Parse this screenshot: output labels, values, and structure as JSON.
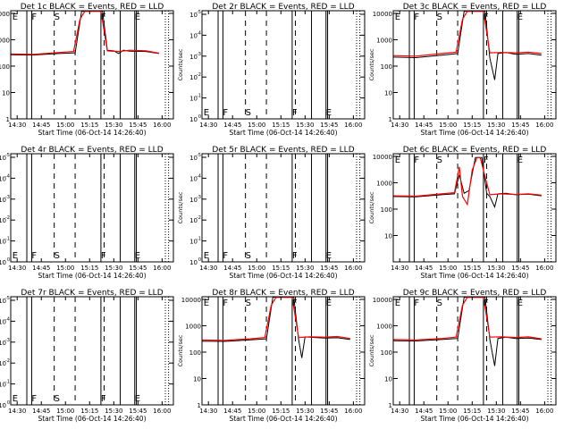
{
  "chart_data": [
    {
      "title": "Det 1c BLACK = Events, RED = LLD",
      "type": "line",
      "scale": "log",
      "ytick_labels": [
        "1",
        "10",
        "100",
        "1000",
        "10000"
      ],
      "ylabel": "Counts/sec",
      "xlabel": "Start Time (06-Oct-14 14:26:40)",
      "xtick_labels": [
        "14:30",
        "14:45",
        "15:00",
        "15:15",
        "15:30",
        "15:45",
        "16:00"
      ],
      "markers": [
        "E",
        "F",
        "S",
        "F",
        "E"
      ],
      "has_data": true,
      "series": [
        {
          "color": "#000000",
          "x": [
            "14:26",
            "14:40",
            "14:56",
            "15:06",
            "15:10",
            "15:23",
            "15:26",
            "15:30",
            "15:33",
            "15:36",
            "15:40",
            "15:50",
            "15:58"
          ],
          "y": [
            270,
            265,
            300,
            320,
            12000,
            12000,
            400,
            380,
            300,
            400,
            370,
            360,
            300
          ]
        },
        {
          "color": "#ff0000",
          "x": [
            "14:26",
            "14:40",
            "14:56",
            "15:05",
            "15:09",
            "15:12",
            "15:22",
            "15:26",
            "15:33",
            "15:40",
            "15:50",
            "15:58"
          ],
          "y": [
            290,
            280,
            330,
            360,
            6000,
            12000,
            12000,
            380,
            360,
            400,
            380,
            310
          ]
        }
      ]
    },
    {
      "title": "Det 2r BLACK = Events, RED = LLD",
      "type": "line",
      "scale": "exp",
      "ytick_labels": [
        "10",
        "10",
        "10",
        "10",
        "10",
        "10"
      ],
      "ytick_exps": [
        "0",
        "-1",
        "-2",
        "-3",
        "-4",
        "-5"
      ],
      "ylabel": "Counts/sec",
      "xlabel": "Start Time (06-Oct-14 14:26:40)",
      "xtick_labels": [
        "14:30",
        "14:45",
        "15:00",
        "15:15",
        "15:30",
        "15:45",
        "16:00"
      ],
      "markers": [
        "E",
        "F",
        "S",
        "F",
        "E"
      ],
      "has_data": false,
      "series": []
    },
    {
      "title": "Det 3c BLACK = Events, RED = LLD",
      "type": "line",
      "scale": "log",
      "ytick_labels": [
        "1",
        "10",
        "100",
        "1000",
        "10000"
      ],
      "ylabel": "Counts/sec",
      "xlabel": "Start Time (06-Oct-14 14:26:40)",
      "xtick_labels": [
        "14:30",
        "14:45",
        "15:00",
        "15:15",
        "15:30",
        "15:45",
        "16:00"
      ],
      "markers": [
        "E",
        "F",
        "S",
        "F",
        "E"
      ],
      "has_data": true,
      "series": [
        {
          "color": "#000000",
          "x": [
            "14:26",
            "14:40",
            "14:56",
            "15:06",
            "15:10",
            "15:23",
            "15:26",
            "15:29",
            "15:31",
            "15:36",
            "15:42",
            "15:50",
            "15:58"
          ],
          "y": [
            220,
            210,
            260,
            300,
            12000,
            12000,
            200,
            30,
            300,
            330,
            280,
            300,
            260
          ]
        },
        {
          "color": "#ff0000",
          "x": [
            "14:26",
            "14:40",
            "14:56",
            "15:05",
            "15:09",
            "15:12",
            "15:22",
            "15:26",
            "15:33",
            "15:42",
            "15:50",
            "15:58"
          ],
          "y": [
            250,
            240,
            300,
            340,
            6000,
            12000,
            12000,
            320,
            330,
            320,
            340,
            300
          ]
        }
      ]
    },
    {
      "title": "Det 4r BLACK = Events, RED = LLD",
      "type": "line",
      "scale": "exp",
      "ytick_labels": [
        "10",
        "10",
        "10",
        "10",
        "10",
        "10"
      ],
      "ytick_exps": [
        "0",
        "-1",
        "-2",
        "-3",
        "-4",
        "-5"
      ],
      "ylabel": "Counts/sec",
      "xlabel": "Start Time (06-Oct-14 14:26:40)",
      "xtick_labels": [
        "14:30",
        "14:45",
        "15:00",
        "15:15",
        "15:30",
        "15:45",
        "16:00"
      ],
      "markers": [
        "E",
        "F",
        "S",
        "F",
        "E"
      ],
      "has_data": false,
      "series": []
    },
    {
      "title": "Det 5r BLACK = Events, RED = LLD",
      "type": "line",
      "scale": "exp",
      "ytick_labels": [
        "10",
        "10",
        "10",
        "10",
        "10",
        "10"
      ],
      "ytick_exps": [
        "0",
        "-1",
        "-2",
        "-3",
        "-4",
        "-5"
      ],
      "ylabel": "Counts/sec",
      "xlabel": "Start Time (06-Oct-14 14:26:40)",
      "xtick_labels": [
        "14:30",
        "14:45",
        "15:00",
        "15:15",
        "15:30",
        "15:45",
        "16:00"
      ],
      "markers": [
        "E",
        "F",
        "S",
        "F",
        "E"
      ],
      "has_data": false,
      "series": []
    },
    {
      "title": "Det 6c BLACK = Events, RED = LLD",
      "type": "line",
      "scale": "log",
      "ytick_labels": [
        "10",
        "100",
        "1000",
        "10000"
      ],
      "ylabel": "Counts/sec",
      "xlabel": "Start Time (06-Oct-14 14:26:40)",
      "xtick_labels": [
        "14:30",
        "14:45",
        "15:00",
        "15:15",
        "15:30",
        "15:45",
        "16:00"
      ],
      "markers": [
        "E",
        "F",
        "S",
        "F",
        "E"
      ],
      "has_data": true,
      "series": [
        {
          "color": "#000000",
          "x": [
            "14:26",
            "14:40",
            "14:56",
            "15:04",
            "15:07",
            "15:10",
            "15:13",
            "15:17",
            "15:21",
            "15:24",
            "15:26",
            "15:29",
            "15:31",
            "15:36",
            "15:42",
            "15:50",
            "15:58"
          ],
          "y": [
            300,
            290,
            350,
            380,
            2000,
            400,
            500,
            9000,
            9000,
            400,
            300,
            120,
            380,
            400,
            350,
            370,
            320
          ]
        },
        {
          "color": "#ff0000",
          "x": [
            "14:26",
            "14:40",
            "14:56",
            "15:04",
            "15:07",
            "15:09",
            "15:12",
            "15:15",
            "15:18",
            "15:20",
            "15:24",
            "15:26",
            "15:33",
            "15:42",
            "15:50",
            "15:58"
          ],
          "y": [
            320,
            310,
            380,
            420,
            4000,
            300,
            150,
            3000,
            9000,
            9000,
            1000,
            350,
            380,
            360,
            380,
            340
          ]
        }
      ]
    },
    {
      "title": "Det 7r BLACK = Events, RED = LLD",
      "type": "line",
      "scale": "exp",
      "ytick_labels": [
        "10",
        "10",
        "10",
        "10",
        "10",
        "10"
      ],
      "ytick_exps": [
        "0",
        "-1",
        "-2",
        "-3",
        "-4",
        "-5"
      ],
      "ylabel": "Counts/sec",
      "xlabel": "Start Time (06-Oct-14 14:26:40)",
      "xtick_labels": [
        "14:30",
        "14:45",
        "15:00",
        "15:15",
        "15:30",
        "15:45",
        "16:00"
      ],
      "markers": [
        "E",
        "F",
        "S",
        "F",
        "E"
      ],
      "has_data": false,
      "series": []
    },
    {
      "title": "Det 8r BLACK = Events, RED = LLD",
      "type": "line",
      "scale": "log",
      "ytick_labels": [
        "1",
        "10",
        "100",
        "1000",
        "10000"
      ],
      "ylabel": "Counts/sec",
      "xlabel": "Start Time (06-Oct-14 14:26:40)",
      "xtick_labels": [
        "14:30",
        "14:45",
        "15:00",
        "15:15",
        "15:30",
        "15:45",
        "16:00"
      ],
      "markers": [
        "E",
        "F",
        "S",
        "F",
        "E"
      ],
      "has_data": true,
      "series": [
        {
          "color": "#000000",
          "x": [
            "14:26",
            "14:40",
            "14:56",
            "15:06",
            "15:10",
            "15:23",
            "15:26",
            "15:28",
            "15:30",
            "15:36",
            "15:42",
            "15:50",
            "15:58"
          ],
          "y": [
            260,
            255,
            290,
            320,
            12000,
            12000,
            300,
            60,
            380,
            360,
            340,
            350,
            300
          ]
        },
        {
          "color": "#ff0000",
          "x": [
            "14:26",
            "14:40",
            "14:56",
            "15:05",
            "15:09",
            "15:12",
            "15:22",
            "15:26",
            "15:33",
            "15:42",
            "15:50",
            "15:58"
          ],
          "y": [
            290,
            280,
            320,
            360,
            6000,
            12000,
            12000,
            360,
            380,
            370,
            390,
            330
          ]
        }
      ]
    },
    {
      "title": "Det 9c BLACK = Events, RED = LLD",
      "type": "line",
      "scale": "log",
      "ytick_labels": [
        "1",
        "10",
        "100",
        "1000",
        "10000"
      ],
      "ylabel": "Counts/sec",
      "xlabel": "Start Time (06-Oct-14 14:26:40)",
      "xtick_labels": [
        "14:30",
        "14:45",
        "15:00",
        "15:15",
        "15:30",
        "15:45",
        "16:00"
      ],
      "markers": [
        "E",
        "F",
        "S",
        "F",
        "E"
      ],
      "has_data": true,
      "series": [
        {
          "color": "#000000",
          "x": [
            "14:26",
            "14:40",
            "14:56",
            "15:06",
            "15:10",
            "15:23",
            "15:26",
            "15:29",
            "15:31",
            "15:36",
            "15:42",
            "15:50",
            "15:58"
          ],
          "y": [
            270,
            265,
            300,
            330,
            12000,
            12000,
            300,
            30,
            330,
            370,
            330,
            340,
            300
          ]
        },
        {
          "color": "#ff0000",
          "x": [
            "14:26",
            "14:40",
            "14:56",
            "15:05",
            "15:09",
            "15:12",
            "15:22",
            "15:26",
            "15:33",
            "15:42",
            "15:50",
            "15:58"
          ],
          "y": [
            300,
            290,
            330,
            370,
            6000,
            12000,
            12000,
            370,
            380,
            360,
            380,
            320
          ]
        }
      ]
    }
  ],
  "x_range": [
    "14:26",
    "16:07"
  ],
  "vertical_lines": {
    "solid": [
      "14:36",
      "14:39",
      "15:22",
      "15:34",
      "15:43",
      "15:44"
    ],
    "dashed": [
      "14:53",
      "15:06",
      "15:24"
    ],
    "dotted": [
      "16:02",
      "16:04"
    ]
  },
  "marker_positions": [
    "14:27",
    "14:39",
    "14:53",
    "15:22",
    "15:43"
  ]
}
